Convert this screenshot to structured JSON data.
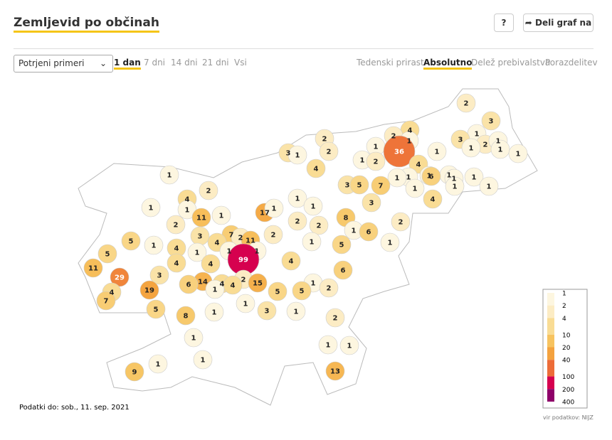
{
  "header": {
    "title": "Zemljevid po občinah",
    "help": "?",
    "share": "Deli graf na"
  },
  "controls": {
    "dropdown": "Potrjeni primeri",
    "periods": [
      "1 dan",
      "7 dni",
      "14 dni",
      "21 dni",
      "Vsi"
    ],
    "active_period": 0,
    "views": [
      "Tedenski prirast",
      "Absolutno",
      "Delež prebivalstva",
      "Porazdelitev"
    ],
    "active_view": 1
  },
  "map": {
    "type": "choropleth",
    "values": [
      2,
      3,
      4,
      2,
      1,
      1,
      3,
      2,
      1,
      1,
      1,
      1,
      2,
      2,
      3,
      1,
      1,
      36,
      1,
      1,
      2,
      4,
      4,
      1,
      1,
      1,
      1,
      1,
      1,
      1,
      6,
      3,
      5,
      7,
      1,
      1,
      1,
      2,
      4,
      1,
      4,
      3,
      1,
      1,
      1,
      17,
      1,
      1,
      11,
      8,
      2,
      2,
      2,
      2,
      1,
      6,
      7,
      2,
      2,
      5,
      3,
      11,
      4,
      1,
      1,
      5,
      1,
      5,
      4,
      1,
      1,
      1,
      99,
      4,
      4,
      4,
      11,
      6,
      3,
      29,
      14,
      4,
      2,
      4,
      15,
      6,
      1,
      1,
      19,
      5,
      5,
      2,
      4,
      7,
      1,
      3,
      5,
      1,
      1,
      8,
      2,
      1,
      1,
      1,
      1,
      1,
      9,
      13
    ],
    "legend": [
      {
        "value": 1,
        "color": "#fdf6e0"
      },
      {
        "value": 2,
        "color": "#fcecc4"
      },
      {
        "value": 4,
        "color": "#f9dc94"
      },
      {
        "value": 10,
        "color": "#f7c35f"
      },
      {
        "value": 20,
        "color": "#f4a23e"
      },
      {
        "value": 40,
        "color": "#ed6c38"
      },
      {
        "value": 100,
        "color": "#d6004f"
      },
      {
        "value": 200,
        "color": "#8e0069"
      },
      {
        "value": 400,
        "color": "#4d0077"
      }
    ]
  },
  "footer": {
    "note": "Podatki do: sob., 11. sep. 2021",
    "source": "vir podatkov: NIJZ"
  }
}
